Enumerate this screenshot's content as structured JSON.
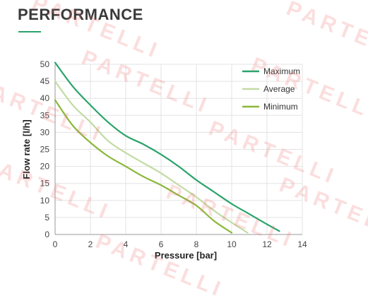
{
  "header": {
    "title": "PERFORMANCE"
  },
  "watermark": {
    "text": "PARTELLI"
  },
  "colors": {
    "maximum": "#2aa36b",
    "average": "#c2dba4",
    "minimum": "#8ab83b",
    "title_underline": "#2aa36b"
  },
  "chart_data": {
    "type": "line",
    "xlabel": "Pressure  [bar]",
    "ylabel": "Flow rate  [l/h]",
    "xlim": [
      0,
      14
    ],
    "ylim": [
      0,
      50
    ],
    "xticks": [
      0,
      2,
      4,
      6,
      8,
      10,
      12,
      14
    ],
    "yticks": [
      0,
      5,
      10,
      15,
      20,
      25,
      30,
      35,
      40,
      45,
      50
    ],
    "grid": true,
    "legend_position": "top-right",
    "series": [
      {
        "name": "Maximum",
        "color": "#2aa36b",
        "x": [
          0,
          1,
          2,
          3,
          4,
          5,
          6,
          7,
          8,
          9,
          10,
          11,
          12,
          12.7
        ],
        "y": [
          50.5,
          43.5,
          38,
          33,
          29,
          26.5,
          23.5,
          20,
          16,
          12.5,
          9,
          6,
          3,
          1
        ]
      },
      {
        "name": "Average",
        "color": "#c2dba4",
        "x": [
          0,
          1,
          2,
          3,
          4,
          5,
          6,
          7,
          8,
          9,
          10,
          10.9
        ],
        "y": [
          45,
          38,
          33,
          27.5,
          24,
          21,
          18,
          14.5,
          11,
          7,
          3.5,
          0.5
        ]
      },
      {
        "name": "Minimum",
        "color": "#8ab83b",
        "x": [
          0,
          1,
          2,
          3,
          4,
          5,
          6,
          7,
          8,
          9,
          10
        ],
        "y": [
          39.5,
          32,
          27,
          23,
          20,
          17,
          14.5,
          11.5,
          8.5,
          4,
          0.5
        ]
      }
    ]
  }
}
